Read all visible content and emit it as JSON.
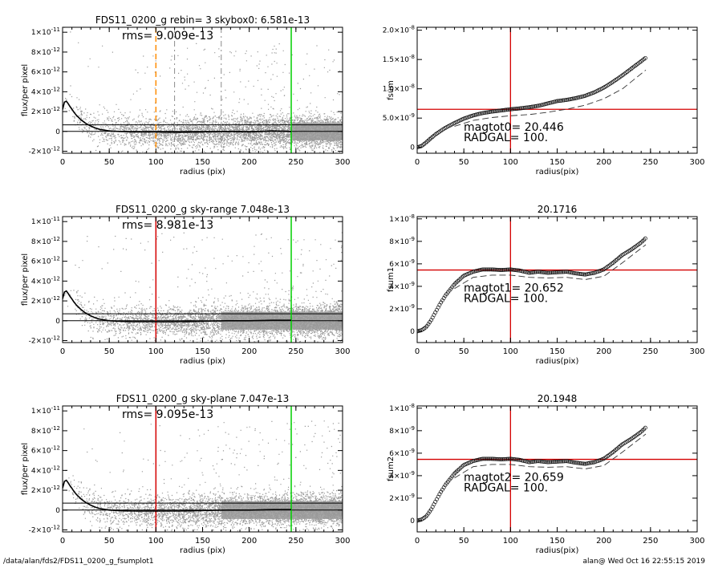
{
  "footer": {
    "left": "/data/alan/fds2/FDS11_0200_g_fsumplot1",
    "right": "alan@  Wed Oct 16 22:55:15 2019"
  },
  "colors": {
    "data_points": "#9a9a9a",
    "profile": "#000000",
    "red_line": "#d40000",
    "green_line": "#00d000",
    "orange_line": "#ff8c00",
    "grey_dash": "#8a8a8a"
  },
  "chart_data": [
    {
      "id": "rms0",
      "type": "scatter",
      "title": "FDS11_0200_g rebin= 3    skybox0:  6.581e-13",
      "annotation": "rms= 9.009e-13",
      "xlabel": "radius (pix)",
      "ylabel": "flux/per pixel",
      "xlim": [
        0,
        300
      ],
      "ylim": [
        -2.2e-12,
        1.05e-11
      ],
      "xticks": [
        0,
        50,
        100,
        150,
        200,
        250,
        300
      ],
      "yticks": [
        {
          "v": 1e-11,
          "base": "1×10",
          "exp": "-11"
        },
        {
          "v": 8e-12,
          "base": "8×10",
          "exp": "-12"
        },
        {
          "v": 6e-12,
          "base": "6×10",
          "exp": "-12"
        },
        {
          "v": 4e-12,
          "base": "4×10",
          "exp": "-12"
        },
        {
          "v": 2e-12,
          "base": "2×10",
          "exp": "-12"
        },
        {
          "v": 0,
          "base": "0",
          "exp": ""
        },
        {
          "v": -2e-12,
          "base": "-2×10",
          "exp": "-12"
        }
      ],
      "hlines": [
        6.581e-13,
        0
      ],
      "vlines": [
        {
          "x": 100,
          "style": "orange-dash"
        },
        {
          "x": 120,
          "style": "grey-dash"
        },
        {
          "x": 170,
          "style": "grey-dash"
        },
        {
          "x": 245,
          "style": "green"
        }
      ],
      "profile": {
        "x": [
          0,
          2,
          4,
          6,
          8,
          10,
          12,
          15,
          20,
          25,
          30,
          35,
          40,
          50,
          60,
          75,
          100,
          125,
          150,
          175,
          200,
          225,
          245
        ],
        "y": [
          2.2e-12,
          2.95e-12,
          3.05e-12,
          2.8e-12,
          2.5e-12,
          2.25e-12,
          1.95e-12,
          1.6e-12,
          1.15e-12,
          8e-13,
          5.5e-13,
          3.5e-13,
          2e-13,
          5e-14,
          0.0,
          -5e-14,
          -5e-14,
          -1e-13,
          -5e-14,
          0.0,
          -5e-14,
          5e-14,
          0.0
        ]
      },
      "scatter": {
        "xmax": 300,
        "sigma": 8e-13,
        "stripe_from": 245
      }
    },
    {
      "id": "fsum0",
      "type": "line",
      "title": "",
      "xlabel": "radius(pix)",
      "ylabel": "fsum",
      "xlim": [
        0,
        300
      ],
      "ylim": [
        -1e-09,
        2.05e-08
      ],
      "xticks": [
        0,
        50,
        100,
        150,
        200,
        250,
        300
      ],
      "yticks": [
        {
          "v": 2e-08,
          "base": "2.0×10",
          "exp": "-8"
        },
        {
          "v": 1.5e-08,
          "base": "1.5×10",
          "exp": "-8"
        },
        {
          "v": 1e-08,
          "base": "1.0×10",
          "exp": "-8"
        },
        {
          "v": 5e-09,
          "base": "5.0×10",
          "exp": "-9"
        },
        {
          "v": 0,
          "base": "0",
          "exp": ""
        }
      ],
      "hline": 6.5e-09,
      "vline": 100,
      "annotations": [
        "magtot0=  20.446",
        "RADGAL=    100."
      ],
      "curve": {
        "x": [
          0,
          5,
          10,
          15,
          20,
          25,
          30,
          40,
          50,
          60,
          70,
          80,
          90,
          100,
          110,
          120,
          130,
          140,
          150,
          160,
          170,
          180,
          190,
          200,
          210,
          220,
          230,
          240,
          245
        ],
        "y": [
          0,
          2.5e-10,
          9e-10,
          1.6e-09,
          2.25e-09,
          2.8e-09,
          3.3e-09,
          4.15e-09,
          4.9e-09,
          5.45e-09,
          5.85e-09,
          6.1e-09,
          6.3e-09,
          6.5e-09,
          6.65e-09,
          6.85e-09,
          7.1e-09,
          7.5e-09,
          7.9e-09,
          8.1e-09,
          8.4e-09,
          8.8e-09,
          9.4e-09,
          1.02e-08,
          1.12e-08,
          1.23e-08,
          1.35e-08,
          1.47e-08,
          1.53e-08
        ]
      },
      "lower": {
        "x": [
          40,
          60,
          80,
          100,
          120,
          140,
          160,
          180,
          200,
          220,
          245
        ],
        "y": [
          3.6e-09,
          4.6e-09,
          5.1e-09,
          5.4e-09,
          5.6e-09,
          6e-09,
          6.5e-09,
          7.2e-09,
          8.3e-09,
          1e-08,
          1.32e-08
        ]
      }
    },
    {
      "id": "rms1",
      "type": "scatter",
      "title": "FDS11_0200_g sky-range  7.048e-13",
      "annotation": "rms= 8.981e-13",
      "xlabel": "radius (pix)",
      "ylabel": "flux/per pixel",
      "xlim": [
        0,
        300
      ],
      "ylim": [
        -2.2e-12,
        1.05e-11
      ],
      "xticks": [
        0,
        50,
        100,
        150,
        200,
        250,
        300
      ],
      "yticks": [
        {
          "v": 1e-11,
          "base": "1×10",
          "exp": "-11"
        },
        {
          "v": 8e-12,
          "base": "8×10",
          "exp": "-12"
        },
        {
          "v": 6e-12,
          "base": "6×10",
          "exp": "-12"
        },
        {
          "v": 4e-12,
          "base": "4×10",
          "exp": "-12"
        },
        {
          "v": 2e-12,
          "base": "2×10",
          "exp": "-12"
        },
        {
          "v": 0,
          "base": "0",
          "exp": ""
        },
        {
          "v": -2e-12,
          "base": "-2×10",
          "exp": "-12"
        }
      ],
      "hlines": [
        7.048e-13,
        0
      ],
      "vlines": [
        {
          "x": 100,
          "style": "red"
        },
        {
          "x": 245,
          "style": "green"
        }
      ],
      "profile": {
        "x": [
          0,
          2,
          4,
          6,
          8,
          10,
          12,
          15,
          20,
          25,
          30,
          35,
          40,
          50,
          60,
          75,
          100,
          125,
          150,
          175,
          200,
          225,
          245
        ],
        "y": [
          2.2e-12,
          2.9e-12,
          3e-12,
          2.75e-12,
          2.45e-12,
          2.2e-12,
          1.9e-12,
          1.55e-12,
          1.1e-12,
          7.5e-13,
          5e-13,
          3e-13,
          1.5e-13,
          0.0,
          -5e-14,
          -1e-13,
          -1e-13,
          -1e-13,
          -5e-14,
          0.0,
          0.0,
          5e-14,
          5e-14
        ]
      },
      "scatter": {
        "xmax": 300,
        "sigma": 8e-13,
        "stripe_from": 170
      }
    },
    {
      "id": "fsum1",
      "type": "line",
      "title": "20.1716",
      "xlabel": "radius(pix)",
      "ylabel": "fsum1",
      "xlim": [
        0,
        300
      ],
      "ylim": [
        -1e-09,
        1.02e-08
      ],
      "xticks": [
        0,
        50,
        100,
        150,
        200,
        250,
        300
      ],
      "yticks": [
        {
          "v": 1e-08,
          "base": "1×10",
          "exp": "-8"
        },
        {
          "v": 8e-09,
          "base": "8×10",
          "exp": "-9"
        },
        {
          "v": 6e-09,
          "base": "6×10",
          "exp": "-9"
        },
        {
          "v": 4e-09,
          "base": "4×10",
          "exp": "-9"
        },
        {
          "v": 2e-09,
          "base": "2×10",
          "exp": "-9"
        },
        {
          "v": 0,
          "base": "0",
          "exp": ""
        }
      ],
      "hline": 5.45e-09,
      "vline": 100,
      "annotations": [
        "magtot1=  20.652",
        "RADGAL=    100."
      ],
      "curve": {
        "x": [
          0,
          5,
          10,
          15,
          20,
          25,
          30,
          40,
          50,
          60,
          70,
          80,
          90,
          100,
          110,
          120,
          130,
          140,
          150,
          160,
          170,
          180,
          190,
          200,
          210,
          220,
          230,
          240,
          245
        ],
        "y": [
          0,
          1e-10,
          4e-10,
          1e-09,
          1.75e-09,
          2.5e-09,
          3.15e-09,
          4.2e-09,
          4.95e-09,
          5.3e-09,
          5.5e-09,
          5.5e-09,
          5.45e-09,
          5.5e-09,
          5.4e-09,
          5.2e-09,
          5.3e-09,
          5.2e-09,
          5.25e-09,
          5.3e-09,
          5.15e-09,
          5.05e-09,
          5.2e-09,
          5.5e-09,
          6.1e-09,
          6.8e-09,
          7.3e-09,
          7.9e-09,
          8.3e-09
        ]
      },
      "lower": {
        "x": [
          40,
          60,
          80,
          100,
          120,
          140,
          160,
          180,
          200,
          220,
          245
        ],
        "y": [
          3.8e-09,
          4.8e-09,
          5e-09,
          5e-09,
          4.8e-09,
          4.75e-09,
          4.8e-09,
          4.6e-09,
          4.9e-09,
          6.1e-09,
          7.7e-09
        ]
      }
    },
    {
      "id": "rms2",
      "type": "scatter",
      "title": "FDS11_0200_g sky-plane  7.047e-13",
      "annotation": "rms= 9.095e-13",
      "xlabel": "radius (pix)",
      "ylabel": "flux/per pixel",
      "xlim": [
        0,
        300
      ],
      "ylim": [
        -2.2e-12,
        1.05e-11
      ],
      "xticks": [
        0,
        50,
        100,
        150,
        200,
        250,
        300
      ],
      "yticks": [
        {
          "v": 1e-11,
          "base": "1×10",
          "exp": "-11"
        },
        {
          "v": 8e-12,
          "base": "8×10",
          "exp": "-12"
        },
        {
          "v": 6e-12,
          "base": "6×10",
          "exp": "-12"
        },
        {
          "v": 4e-12,
          "base": "4×10",
          "exp": "-12"
        },
        {
          "v": 2e-12,
          "base": "2×10",
          "exp": "-12"
        },
        {
          "v": 0,
          "base": "0",
          "exp": ""
        },
        {
          "v": -2e-12,
          "base": "-2×10",
          "exp": "-12"
        }
      ],
      "hlines": [
        7.047e-13,
        0
      ],
      "vlines": [
        {
          "x": 100,
          "style": "red"
        },
        {
          "x": 245,
          "style": "green"
        }
      ],
      "profile": {
        "x": [
          0,
          2,
          4,
          6,
          8,
          10,
          12,
          15,
          20,
          25,
          30,
          35,
          40,
          50,
          60,
          75,
          100,
          125,
          150,
          175,
          200,
          225,
          245
        ],
        "y": [
          2.2e-12,
          2.9e-12,
          3e-12,
          2.75e-12,
          2.45e-12,
          2.2e-12,
          1.9e-12,
          1.55e-12,
          1.1e-12,
          7.5e-13,
          5e-13,
          3e-13,
          1.5e-13,
          0.0,
          -5e-14,
          -1e-13,
          -1e-13,
          -1e-13,
          -5e-14,
          0.0,
          0.0,
          5e-14,
          5e-14
        ]
      },
      "scatter": {
        "xmax": 300,
        "sigma": 8e-13,
        "stripe_from": 170
      }
    },
    {
      "id": "fsum2",
      "type": "line",
      "title": "20.1948",
      "xlabel": "radius(pix)",
      "ylabel": "fsum2",
      "xlim": [
        0,
        300
      ],
      "ylim": [
        -1e-09,
        1.02e-08
      ],
      "xticks": [
        0,
        50,
        100,
        150,
        200,
        250,
        300
      ],
      "yticks": [
        {
          "v": 1e-08,
          "base": "1×10",
          "exp": "-8"
        },
        {
          "v": 8e-09,
          "base": "8×10",
          "exp": "-9"
        },
        {
          "v": 6e-09,
          "base": "6×10",
          "exp": "-9"
        },
        {
          "v": 4e-09,
          "base": "4×10",
          "exp": "-9"
        },
        {
          "v": 2e-09,
          "base": "2×10",
          "exp": "-9"
        },
        {
          "v": 0,
          "base": "0",
          "exp": ""
        }
      ],
      "hline": 5.45e-09,
      "vline": 100,
      "annotations": [
        "magtot2=  20.659",
        "RADGAL=    100."
      ],
      "curve": {
        "x": [
          0,
          5,
          10,
          15,
          20,
          25,
          30,
          40,
          50,
          60,
          70,
          80,
          90,
          100,
          110,
          120,
          130,
          140,
          150,
          160,
          170,
          180,
          190,
          200,
          210,
          220,
          230,
          240,
          245
        ],
        "y": [
          0,
          1e-10,
          4e-10,
          1e-09,
          1.75e-09,
          2.5e-09,
          3.15e-09,
          4.2e-09,
          4.95e-09,
          5.3e-09,
          5.5e-09,
          5.5e-09,
          5.45e-09,
          5.5e-09,
          5.4e-09,
          5.2e-09,
          5.3e-09,
          5.2e-09,
          5.25e-09,
          5.3e-09,
          5.15e-09,
          5.05e-09,
          5.2e-09,
          5.5e-09,
          6.1e-09,
          6.8e-09,
          7.3e-09,
          7.9e-09,
          8.3e-09
        ]
      },
      "lower": {
        "x": [
          40,
          60,
          80,
          100,
          120,
          140,
          160,
          180,
          200,
          220,
          245
        ],
        "y": [
          3.8e-09,
          4.8e-09,
          5e-09,
          5e-09,
          4.8e-09,
          4.75e-09,
          4.8e-09,
          4.6e-09,
          4.9e-09,
          6.1e-09,
          7.7e-09
        ]
      }
    }
  ]
}
